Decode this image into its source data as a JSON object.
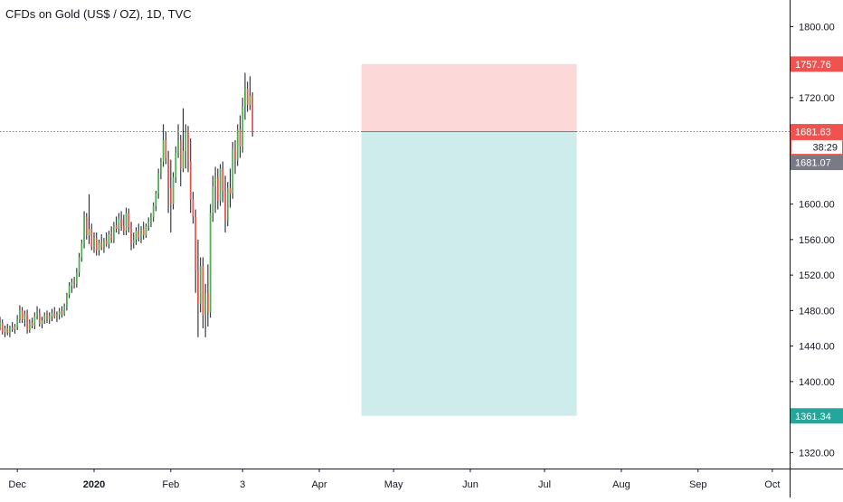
{
  "header": {
    "title": "CFDs on Gold (US$ / OZ), 1D, TVC"
  },
  "colors": {
    "up": "#26a69a",
    "up_body": "#4caf50",
    "down": "#ef5350",
    "wick": "#131722",
    "stop_zone": "#fdd8d8",
    "target_zone": "#cdeceb",
    "stop_tag": "#ef5350",
    "price_tag": "#ef5350",
    "target_tag": "#26a69a",
    "low_tag": "#787b86",
    "price_line": "#ef5350"
  },
  "chart_data": {
    "type": "candlestick",
    "title": "CFDs on Gold (US$ / OZ), 1D, TVC",
    "xlabel": "",
    "ylabel": "",
    "ylim": [
      1302,
      1830
    ],
    "grid": false,
    "y_ticks": [
      "1800.00",
      "1720.00",
      "1600.00",
      "1560.00",
      "1520.00",
      "1480.00",
      "1440.00",
      "1400.00",
      "1320.00"
    ],
    "x_ticks": [
      {
        "label": "Dec",
        "bold": false,
        "day": 0
      },
      {
        "label": "2020",
        "bold": true,
        "day": 31
      },
      {
        "label": "Feb",
        "bold": false,
        "day": 62
      },
      {
        "label": "3",
        "bold": false,
        "day": 91
      },
      {
        "label": "Apr",
        "bold": false,
        "day": 122
      },
      {
        "label": "May",
        "bold": false,
        "day": 152
      },
      {
        "label": "Jun",
        "bold": false,
        "day": 183
      },
      {
        "label": "Jul",
        "bold": false,
        "day": 213
      },
      {
        "label": "Aug",
        "bold": false,
        "day": 244
      },
      {
        "label": "Sep",
        "bold": false,
        "day": 275
      },
      {
        "label": "Oct",
        "bold": false,
        "day": 305
      }
    ],
    "x_range_days": [
      -7,
      312
    ],
    "price_tags": {
      "stop": "1757.76",
      "current": "1681.63",
      "countdown": "38:29",
      "low": "1681.07",
      "target": "1361.34"
    },
    "position": {
      "type": "short",
      "entry": 1681.63,
      "stop": 1757.76,
      "target": 1361.34,
      "start_day": 139,
      "end_day": 226
    },
    "candles": [
      [
        -7,
        1462,
        1473,
        1458,
        1466
      ],
      [
        -6,
        1466,
        1470,
        1453,
        1456
      ],
      [
        -5,
        1456,
        1463,
        1450,
        1460
      ],
      [
        -4,
        1460,
        1465,
        1452,
        1455
      ],
      [
        -3,
        1455,
        1463,
        1450,
        1461
      ],
      [
        -2,
        1461,
        1467,
        1456,
        1459
      ],
      [
        -1,
        1459,
        1465,
        1454,
        1462
      ],
      [
        0,
        1462,
        1475,
        1458,
        1470
      ],
      [
        1,
        1470,
        1486,
        1466,
        1480
      ],
      [
        2,
        1480,
        1484,
        1466,
        1470
      ],
      [
        3,
        1470,
        1480,
        1462,
        1476
      ],
      [
        4,
        1476,
        1481,
        1454,
        1458
      ],
      [
        5,
        1458,
        1470,
        1455,
        1466
      ],
      [
        6,
        1466,
        1472,
        1460,
        1463
      ],
      [
        7,
        1463,
        1478,
        1459,
        1474
      ],
      [
        8,
        1474,
        1485,
        1470,
        1477
      ],
      [
        9,
        1477,
        1482,
        1462,
        1465
      ],
      [
        10,
        1465,
        1473,
        1460,
        1469
      ],
      [
        11,
        1469,
        1478,
        1465,
        1475
      ],
      [
        12,
        1475,
        1480,
        1466,
        1470
      ],
      [
        13,
        1470,
        1478,
        1465,
        1474
      ],
      [
        14,
        1474,
        1482,
        1468,
        1477
      ],
      [
        15,
        1477,
        1484,
        1471,
        1473
      ],
      [
        16,
        1473,
        1479,
        1467,
        1475
      ],
      [
        17,
        1475,
        1483,
        1470,
        1479
      ],
      [
        18,
        1479,
        1485,
        1472,
        1476
      ],
      [
        19,
        1476,
        1488,
        1474,
        1485
      ],
      [
        20,
        1485,
        1500,
        1480,
        1498
      ],
      [
        21,
        1498,
        1512,
        1494,
        1508
      ],
      [
        22,
        1508,
        1516,
        1500,
        1512
      ],
      [
        23,
        1512,
        1518,
        1505,
        1510
      ],
      [
        24,
        1510,
        1528,
        1506,
        1523
      ],
      [
        25,
        1523,
        1545,
        1518,
        1540
      ],
      [
        26,
        1540,
        1560,
        1535,
        1556
      ],
      [
        27,
        1556,
        1592,
        1550,
        1585
      ],
      [
        28,
        1585,
        1590,
        1560,
        1565
      ],
      [
        29,
        1565,
        1611,
        1555,
        1572
      ],
      [
        30,
        1572,
        1578,
        1548,
        1552
      ],
      [
        31,
        1552,
        1568,
        1545,
        1562
      ],
      [
        32,
        1562,
        1568,
        1542,
        1548
      ],
      [
        33,
        1548,
        1560,
        1542,
        1556
      ],
      [
        34,
        1556,
        1566,
        1548,
        1551
      ],
      [
        35,
        1551,
        1562,
        1545,
        1559
      ],
      [
        36,
        1559,
        1568,
        1552,
        1555
      ],
      [
        37,
        1555,
        1570,
        1550,
        1566
      ],
      [
        38,
        1566,
        1575,
        1556,
        1560
      ],
      [
        39,
        1560,
        1580,
        1556,
        1576
      ],
      [
        40,
        1576,
        1586,
        1568,
        1572
      ],
      [
        41,
        1572,
        1590,
        1566,
        1584
      ],
      [
        42,
        1584,
        1592,
        1570,
        1575
      ],
      [
        43,
        1575,
        1588,
        1565,
        1570
      ],
      [
        44,
        1570,
        1596,
        1565,
        1590
      ],
      [
        45,
        1590,
        1595,
        1568,
        1574
      ],
      [
        46,
        1574,
        1580,
        1548,
        1556
      ],
      [
        47,
        1556,
        1568,
        1550,
        1560
      ],
      [
        48,
        1560,
        1574,
        1554,
        1570
      ],
      [
        49,
        1570,
        1578,
        1558,
        1562
      ],
      [
        50,
        1562,
        1575,
        1556,
        1572
      ],
      [
        51,
        1572,
        1580,
        1560,
        1565
      ],
      [
        52,
        1565,
        1578,
        1562,
        1575
      ],
      [
        53,
        1575,
        1585,
        1570,
        1580
      ],
      [
        54,
        1580,
        1590,
        1574,
        1585
      ],
      [
        55,
        1585,
        1602,
        1580,
        1598
      ],
      [
        56,
        1598,
        1615,
        1592,
        1612
      ],
      [
        57,
        1612,
        1640,
        1606,
        1635
      ],
      [
        58,
        1635,
        1652,
        1628,
        1648
      ],
      [
        59,
        1648,
        1690,
        1642,
        1672
      ],
      [
        60,
        1672,
        1682,
        1645,
        1652
      ],
      [
        61,
        1652,
        1660,
        1590,
        1618
      ],
      [
        62,
        1618,
        1650,
        1568,
        1600
      ],
      [
        63,
        1600,
        1636,
        1594,
        1630
      ],
      [
        64,
        1630,
        1665,
        1624,
        1658
      ],
      [
        65,
        1658,
        1690,
        1652,
        1672
      ],
      [
        66,
        1672,
        1678,
        1620,
        1640
      ],
      [
        67,
        1640,
        1708,
        1636,
        1660
      ],
      [
        68,
        1660,
        1690,
        1640,
        1682
      ],
      [
        69,
        1682,
        1688,
        1636,
        1648
      ],
      [
        70,
        1648,
        1674,
        1590,
        1605
      ],
      [
        71,
        1605,
        1614,
        1578,
        1586
      ],
      [
        72,
        1586,
        1594,
        1500,
        1525
      ],
      [
        73,
        1525,
        1560,
        1450,
        1488
      ],
      [
        74,
        1488,
        1540,
        1478,
        1530
      ],
      [
        75,
        1530,
        1540,
        1460,
        1475
      ],
      [
        76,
        1475,
        1510,
        1450,
        1500
      ],
      [
        77,
        1500,
        1532,
        1462,
        1478
      ],
      [
        78,
        1478,
        1600,
        1472,
        1590
      ],
      [
        79,
        1590,
        1632,
        1580,
        1620
      ],
      [
        80,
        1620,
        1642,
        1590,
        1630
      ],
      [
        81,
        1630,
        1640,
        1594,
        1604
      ],
      [
        82,
        1604,
        1645,
        1598,
        1640
      ],
      [
        83,
        1640,
        1648,
        1602,
        1615
      ],
      [
        84,
        1615,
        1632,
        1568,
        1582
      ],
      [
        85,
        1582,
        1625,
        1575,
        1618
      ],
      [
        86,
        1618,
        1640,
        1596,
        1612
      ],
      [
        87,
        1612,
        1670,
        1606,
        1662
      ],
      [
        88,
        1662,
        1672,
        1634,
        1650
      ],
      [
        89,
        1650,
        1690,
        1643,
        1684
      ],
      [
        90,
        1684,
        1700,
        1652,
        1665
      ],
      [
        91,
        1665,
        1720,
        1658,
        1710
      ],
      [
        92,
        1710,
        1748,
        1695,
        1730
      ],
      [
        93,
        1730,
        1738,
        1704,
        1712
      ],
      [
        94,
        1712,
        1744,
        1706,
        1722
      ],
      [
        95,
        1722,
        1726,
        1676,
        1681.63
      ]
    ]
  }
}
